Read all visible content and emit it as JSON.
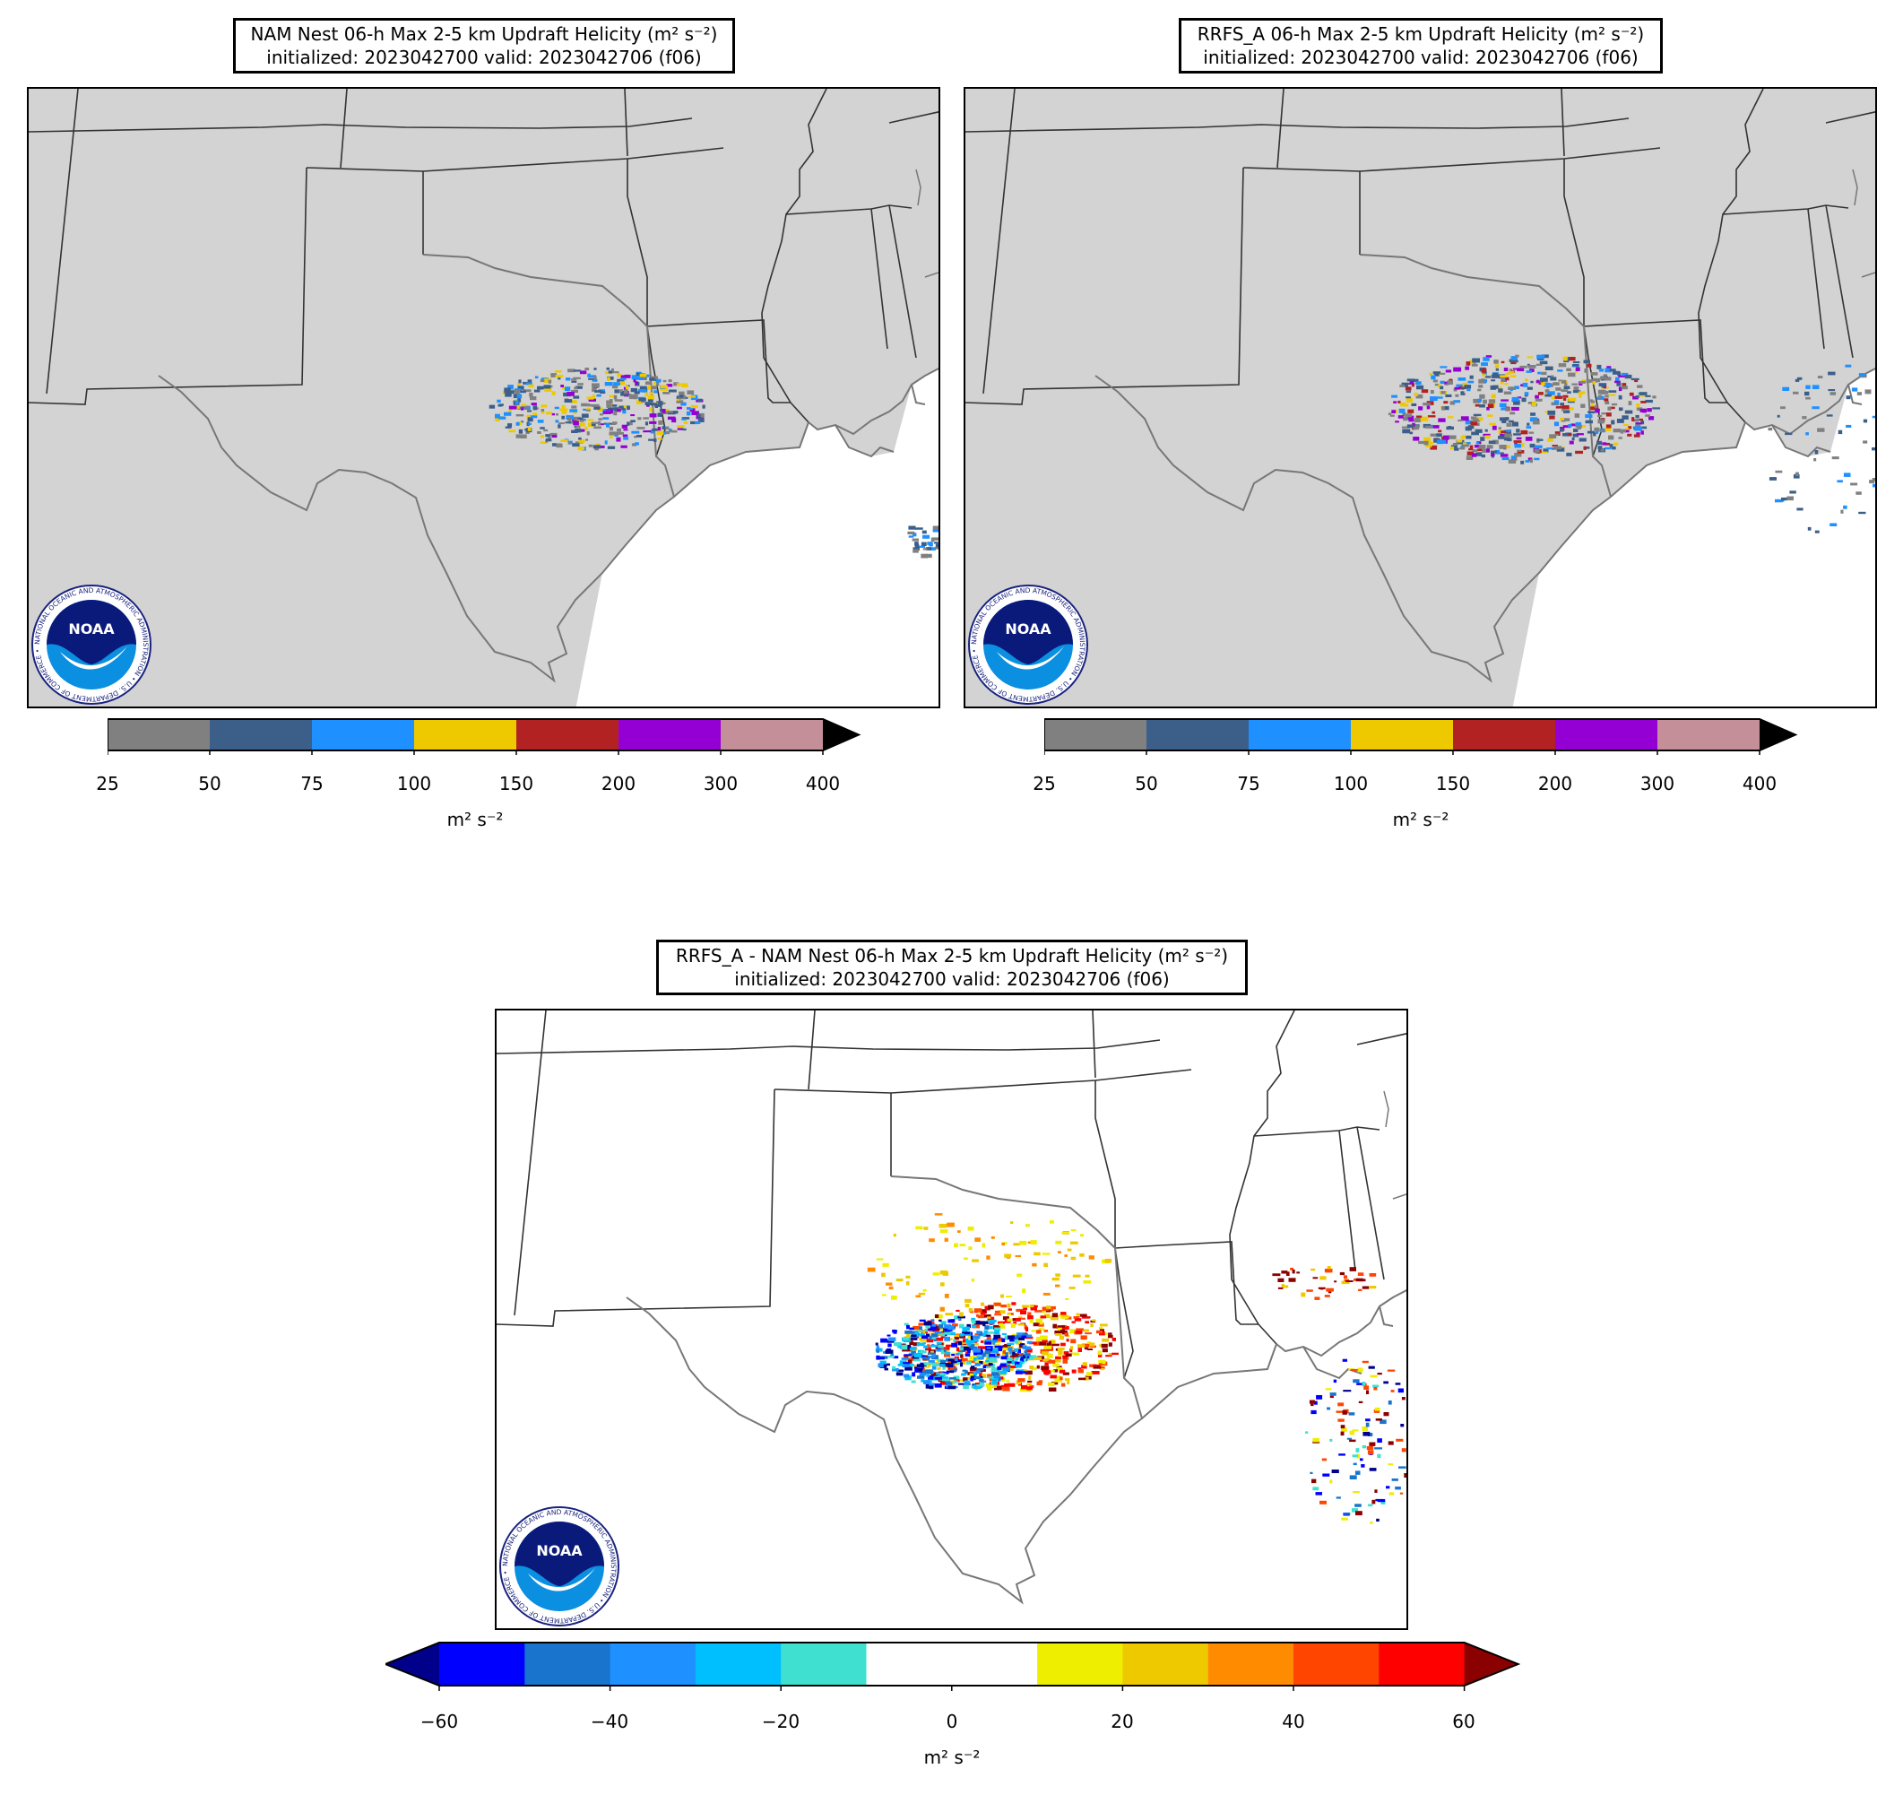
{
  "panels": {
    "nam": {
      "title_line1": "NAM Nest 06-h Max 2-5 km Updraft Helicity (m² s⁻²)",
      "title_line2": "initialized: 2023042700 valid: 2023042706 (f06)"
    },
    "rrfs": {
      "title_line1": "RRFS_A 06-h Max 2-5 km Updraft Helicity (m² s⁻²)",
      "title_line2": "initialized: 2023042700 valid: 2023042706 (f06)"
    },
    "diff": {
      "title_line1": "RRFS_A - NAM Nest 06-h Max 2-5 km Updraft Helicity (m² s⁻²)",
      "title_line2": "initialized: 2023042700 valid: 2023042706 (f06)"
    }
  },
  "logo": {
    "text": "NOAA",
    "ring_text": "NATIONAL OCEANIC AND ATMOSPHERIC ADMINISTRATION • U.S. DEPARTMENT OF COMMERCE •"
  },
  "colorbars": {
    "uh": {
      "ticks": [
        "25",
        "50",
        "75",
        "100",
        "150",
        "200",
        "300",
        "400"
      ],
      "colors": [
        "#808080",
        "#3c5f8a",
        "#1e90ff",
        "#eec900",
        "#b22222",
        "#9400d3",
        "#c48f99"
      ],
      "extend_color": "#000000",
      "unit": "m² s⁻²"
    },
    "diff": {
      "ticks": [
        "−60",
        "−40",
        "−20",
        "0",
        "20",
        "40",
        "60"
      ],
      "colors": [
        "#0000ff",
        "#1874cd",
        "#1e90ff",
        "#00bfff",
        "#40e0d0",
        "#ffffff",
        "#ffffff",
        "#eeee00",
        "#eec900",
        "#ff8c00",
        "#ff4500",
        "#ff0000"
      ],
      "low_extend_color": "#00008b",
      "high_extend_color": "#8b0000",
      "unit": "m² s⁻²"
    }
  }
}
